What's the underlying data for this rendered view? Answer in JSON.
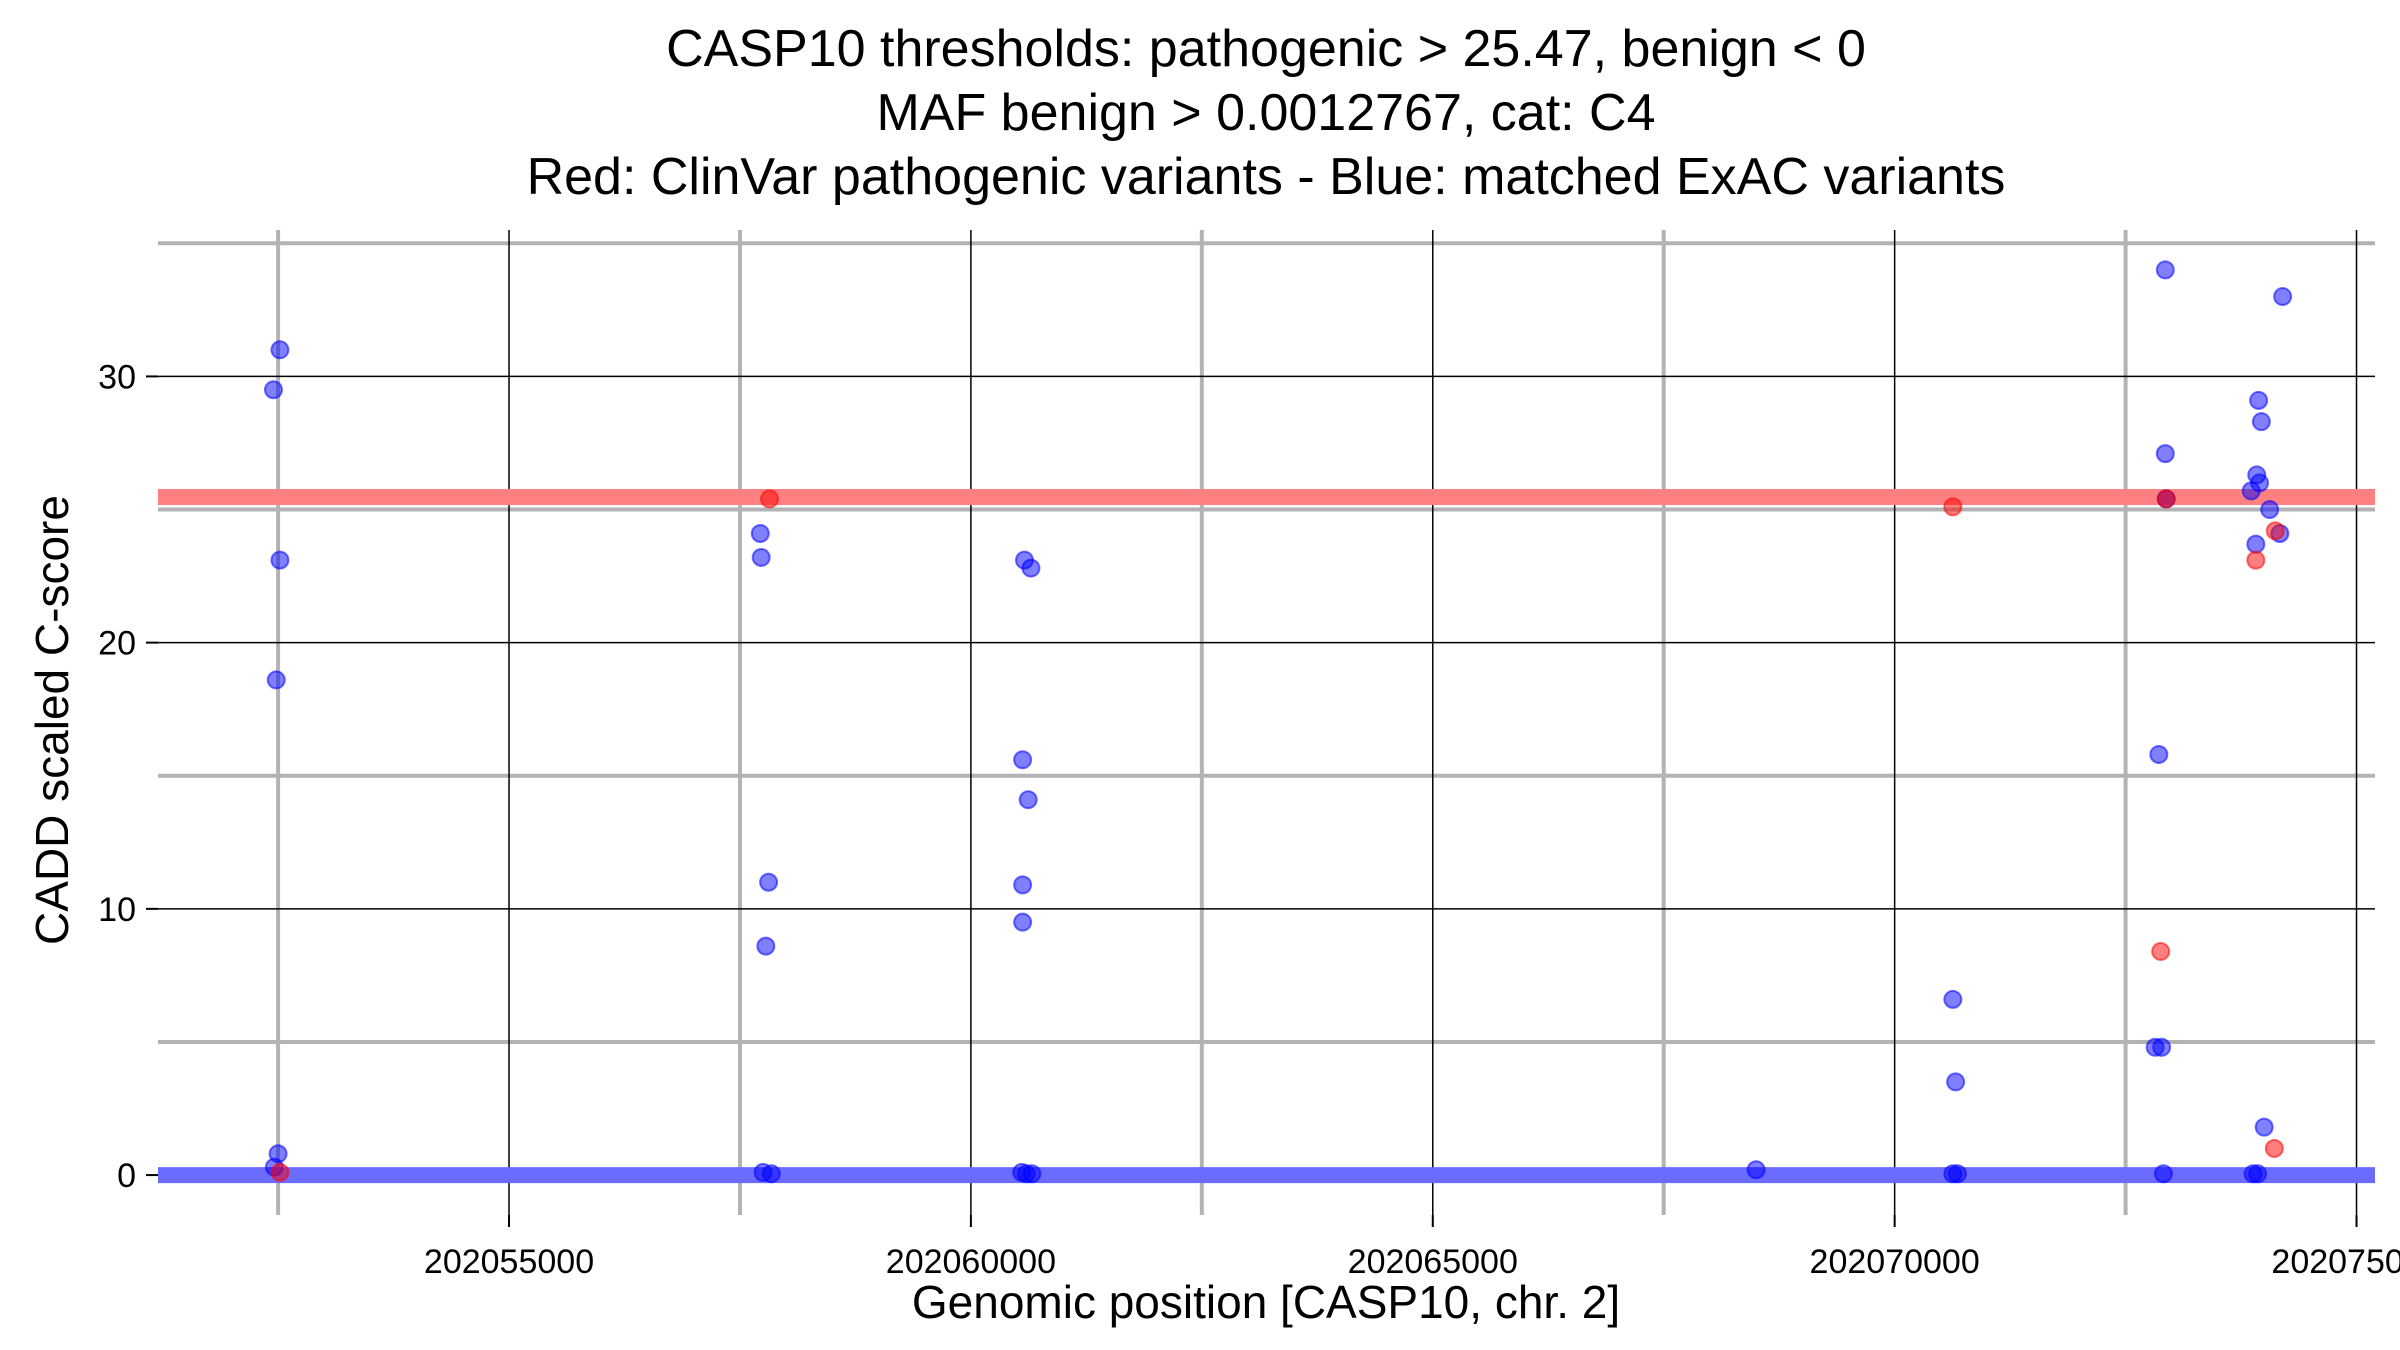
{
  "chart_data": {
    "type": "scatter",
    "title": [
      "CASP10 thresholds: pathogenic > 25.47, benign < 0",
      "MAF benign > 0.0012767, cat: C4",
      "Red: ClinVar pathogenic variants - Blue: matched ExAC variants"
    ],
    "xlabel": "Genomic position [CASP10, chr. 2]",
    "ylabel": "CADD scaled C-score",
    "xlim": [
      202051200,
      202075200
    ],
    "ylim": [
      -1.5,
      35.5
    ],
    "x_ticks": [
      {
        "value": 202055000,
        "label": "202055000"
      },
      {
        "value": 202060000,
        "label": "202060000"
      },
      {
        "value": 202065000,
        "label": "202065000"
      },
      {
        "value": 202070000,
        "label": "202070000"
      },
      {
        "value": 202075000,
        "label": "202075000"
      }
    ],
    "x_minor_gridlines": [
      202052500,
      202057500,
      202062500,
      202067500,
      202072500
    ],
    "y_ticks": [
      {
        "value": 0,
        "label": "0"
      },
      {
        "value": 10,
        "label": "10"
      },
      {
        "value": 20,
        "label": "20"
      },
      {
        "value": 30,
        "label": "30"
      }
    ],
    "y_minor_gridlines": [
      5,
      15,
      25,
      35
    ],
    "grid": true,
    "thresholds": [
      {
        "name": "pathogenic",
        "value": 25.47,
        "color": "#ff8080"
      },
      {
        "name": "benign",
        "value": 0,
        "color": "#6b6bff"
      }
    ],
    "series": [
      {
        "color": "#0000ff",
        "points": [
          {
            "x": 202052450,
            "y": 29.5
          },
          {
            "x": 202052520,
            "y": 31.0
          },
          {
            "x": 202052520,
            "y": 23.1
          },
          {
            "x": 202052480,
            "y": 18.6
          },
          {
            "x": 202052500,
            "y": 0.8
          },
          {
            "x": 202052460,
            "y": 0.3
          },
          {
            "x": 202057720,
            "y": 24.1
          },
          {
            "x": 202057730,
            "y": 23.2
          },
          {
            "x": 202057810,
            "y": 11.0
          },
          {
            "x": 202057780,
            "y": 8.6
          },
          {
            "x": 202057750,
            "y": 0.1
          },
          {
            "x": 202057840,
            "y": 0.05
          },
          {
            "x": 202060580,
            "y": 23.1
          },
          {
            "x": 202060650,
            "y": 22.8
          },
          {
            "x": 202060560,
            "y": 15.6
          },
          {
            "x": 202060620,
            "y": 14.1
          },
          {
            "x": 202060560,
            "y": 10.9
          },
          {
            "x": 202060560,
            "y": 9.5
          },
          {
            "x": 202060550,
            "y": 0.1
          },
          {
            "x": 202060600,
            "y": 0.05
          },
          {
            "x": 202060660,
            "y": 0.05
          },
          {
            "x": 202068500,
            "y": 0.2
          },
          {
            "x": 202070630,
            "y": 6.6
          },
          {
            "x": 202070660,
            "y": 3.5
          },
          {
            "x": 202070630,
            "y": 0.05
          },
          {
            "x": 202070680,
            "y": 0.05
          },
          {
            "x": 202072930,
            "y": 34.0
          },
          {
            "x": 202072930,
            "y": 27.1
          },
          {
            "x": 202072940,
            "y": 25.4
          },
          {
            "x": 202072860,
            "y": 15.8
          },
          {
            "x": 202072820,
            "y": 4.8
          },
          {
            "x": 202072890,
            "y": 4.8
          },
          {
            "x": 202072910,
            "y": 0.05
          },
          {
            "x": 202073940,
            "y": 29.1
          },
          {
            "x": 202073970,
            "y": 28.3
          },
          {
            "x": 202073920,
            "y": 26.3
          },
          {
            "x": 202073950,
            "y": 26.0
          },
          {
            "x": 202073860,
            "y": 25.7
          },
          {
            "x": 202074060,
            "y": 25.0
          },
          {
            "x": 202073910,
            "y": 23.7
          },
          {
            "x": 202074170,
            "y": 24.1
          },
          {
            "x": 202074000,
            "y": 1.8
          },
          {
            "x": 202073880,
            "y": 0.05
          },
          {
            "x": 202073930,
            "y": 0.05
          },
          {
            "x": 202074200,
            "y": 33.0
          }
        ]
      },
      {
        "color": "#ff0000",
        "points": [
          {
            "x": 202052520,
            "y": 0.1
          },
          {
            "x": 202057820,
            "y": 25.4
          },
          {
            "x": 202070630,
            "y": 25.1
          },
          {
            "x": 202072940,
            "y": 25.4
          },
          {
            "x": 202072880,
            "y": 8.4
          },
          {
            "x": 202073910,
            "y": 23.1
          },
          {
            "x": 202074120,
            "y": 24.2
          },
          {
            "x": 202074110,
            "y": 1.0
          }
        ]
      }
    ]
  }
}
